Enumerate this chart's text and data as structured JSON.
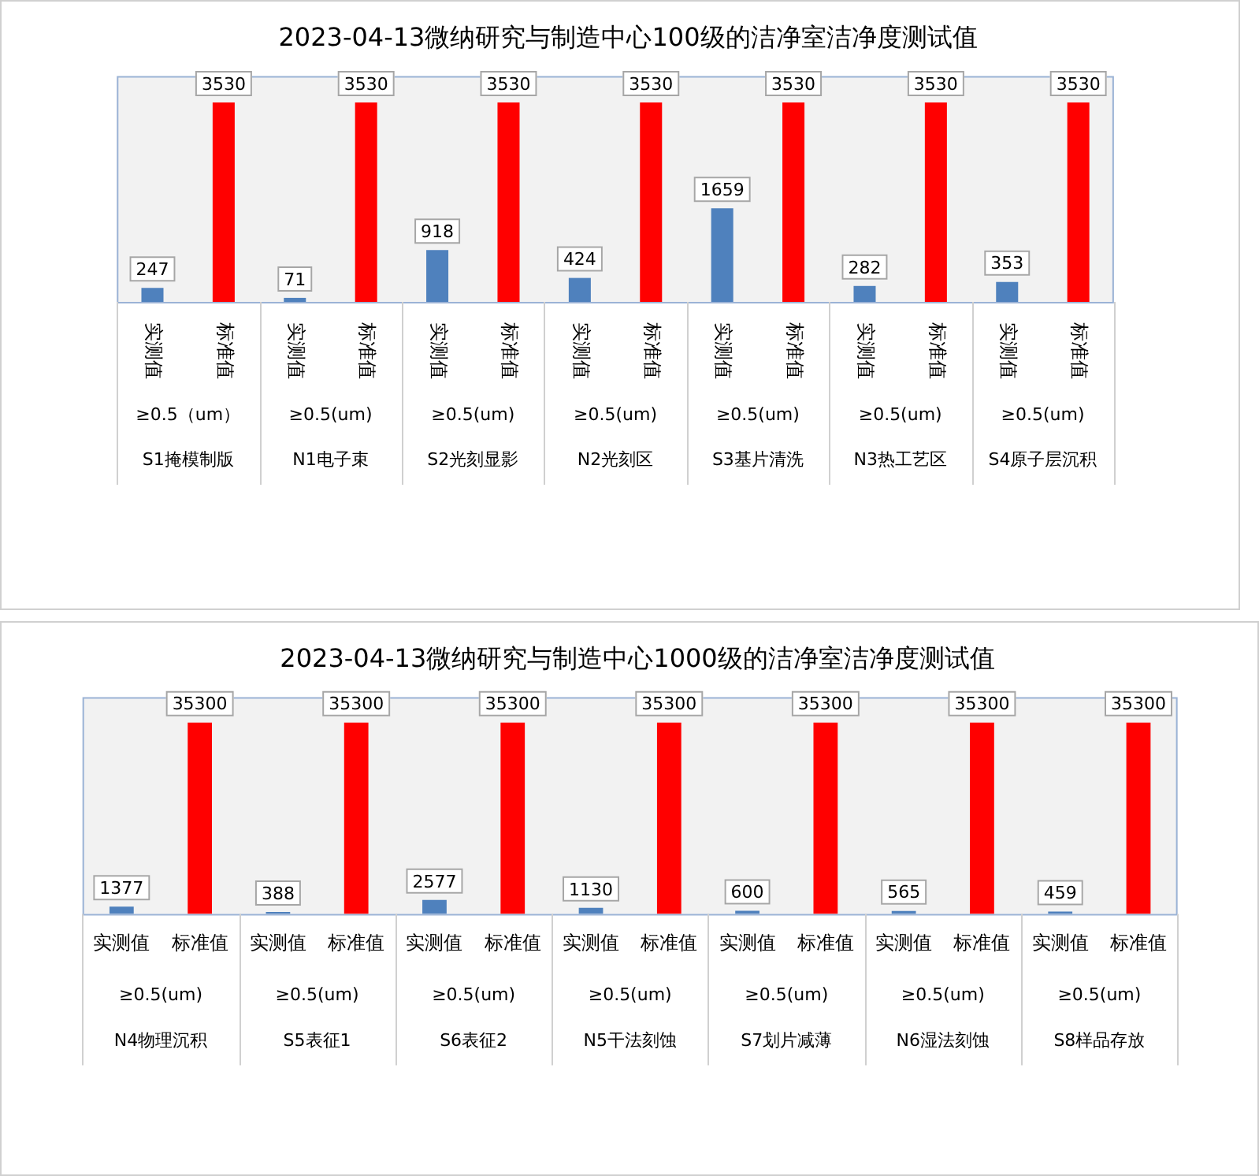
{
  "chart_data": [
    {
      "type": "bar",
      "title": "2023-04-13微纳研究与制造中心100级的洁净室洁净度测试值",
      "categories": [
        "S1掩模制版",
        "N1电子束",
        "S2光刻显影",
        "N2光刻区",
        "S3基片清洗",
        "N3热工艺区",
        "S4原子层沉积"
      ],
      "series": [
        {
          "name": "实测值",
          "color": "#4f81bd",
          "values": [
            247,
            71,
            918,
            424,
            1659,
            282,
            353
          ]
        },
        {
          "name": "标准值",
          "color": "#ff0000",
          "values": [
            3530,
            3530,
            3530,
            3530,
            3530,
            3530,
            3530
          ]
        }
      ],
      "annotations": [
        "≥0.5（um）",
        "≥0.5(um)",
        "≥0.5(um)",
        "≥0.5(um)",
        "≥0.5(um)",
        "≥0.5(um)",
        "≥0.5(um)"
      ],
      "tick_labels": "x",
      "data_labels": true
    },
    {
      "type": "bar",
      "title": "2023-04-13微纳研究与制造中心1000级的洁净室洁净度测试值",
      "categories": [
        "N4物理沉积",
        "S5表征1",
        "S6表征2",
        "N5干法刻蚀",
        "S7划片减薄",
        "N6湿法刻蚀",
        "S8样品存放"
      ],
      "series": [
        {
          "name": "实测值",
          "color": "#4f81bd",
          "values": [
            1377,
            388,
            2577,
            1130,
            600,
            565,
            459
          ]
        },
        {
          "name": "标准值",
          "color": "#ff0000",
          "values": [
            35300,
            35300,
            35300,
            35300,
            35300,
            35300,
            35300
          ]
        }
      ],
      "annotations": [
        "≥0.5(um)",
        "≥0.5(um)",
        "≥0.5(um)",
        "≥0.5(um)",
        "≥0.5(um)",
        "≥0.5(um)",
        "≥0.5(um)"
      ],
      "tick_labels": "x",
      "data_labels": true
    }
  ]
}
